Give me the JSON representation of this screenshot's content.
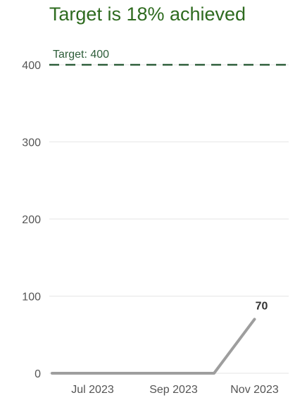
{
  "title": "Target is 18% achieved",
  "colors": {
    "title": "#2e6b1f",
    "target_line": "#2e5e3a",
    "series_line": "#9e9e9e",
    "grid": "#e6e6e6",
    "tick_text": "#555555"
  },
  "chart_data": {
    "type": "line",
    "title": "Target is 18% achieved",
    "x": [
      "2023-06",
      "2023-07",
      "2023-08",
      "2023-09",
      "2023-10",
      "2023-11"
    ],
    "x_tick_labels": [
      "Jul 2023",
      "Sep 2023",
      "Nov 2023"
    ],
    "series": [
      {
        "values": [
          0,
          0,
          0,
          0,
          0,
          70
        ]
      }
    ],
    "y_ticks": [
      0,
      100,
      200,
      300,
      400
    ],
    "ylim": [
      0,
      400
    ],
    "target": {
      "value": 400,
      "label": "Target: 400"
    },
    "data_labels": [
      {
        "x": "2023-11",
        "value": 70,
        "text": "70"
      }
    ],
    "grid": true,
    "legend": "none"
  }
}
